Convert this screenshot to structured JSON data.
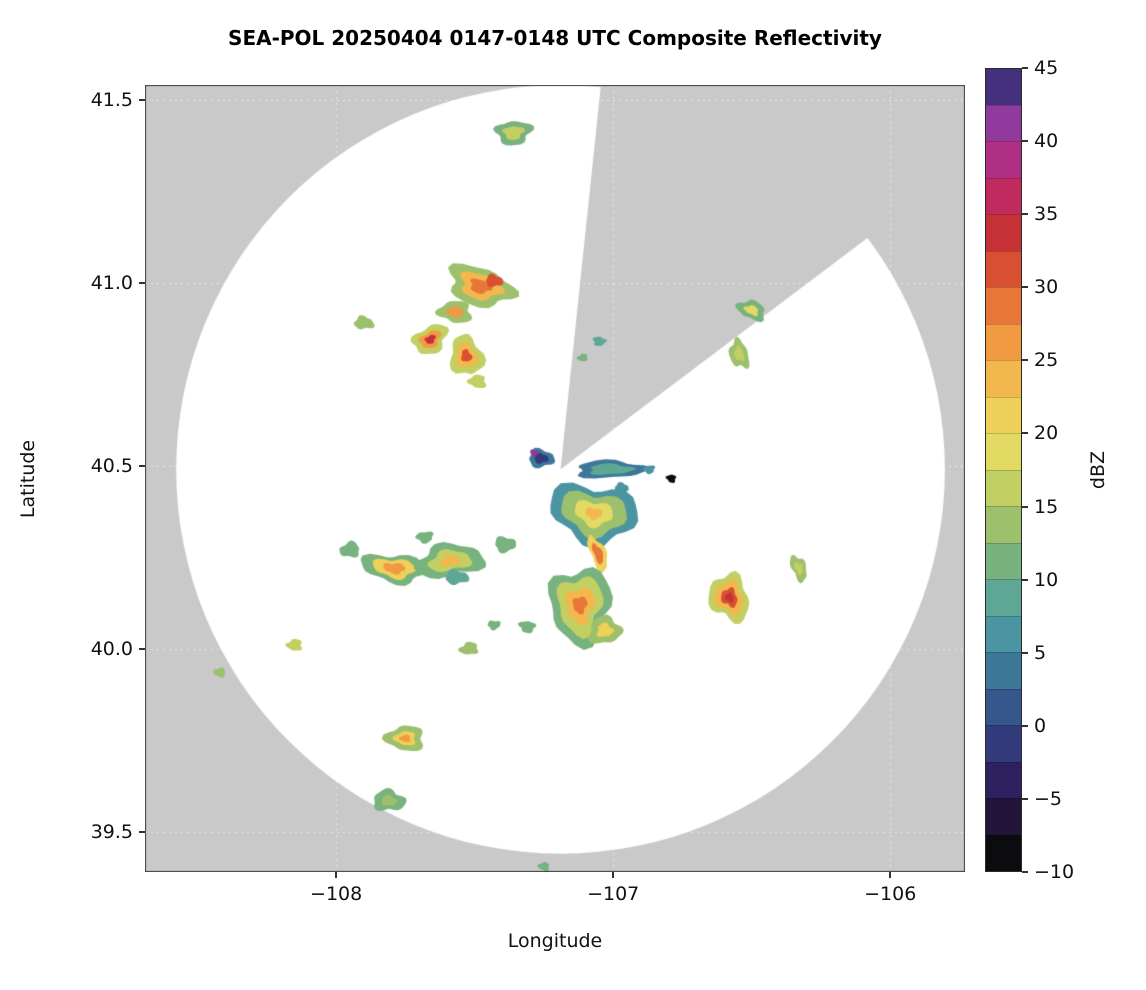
{
  "chart_data": {
    "type": "heatmap",
    "title": "SEA-POL 20250404 0147-0148 UTC Composite Reflectivity",
    "xlabel": "Longitude",
    "ylabel": "Latitude",
    "colorbar_label": "dBZ",
    "x_ticks": [
      -108,
      -107,
      -106
    ],
    "y_ticks": [
      39.5,
      40.0,
      40.5,
      41.0,
      41.5
    ],
    "xlim": [
      -108.69,
      -105.73
    ],
    "ylim": [
      39.39,
      41.54
    ],
    "grid": true,
    "background_color": "#c9c9c9",
    "coverage_color": "#ffffff",
    "colorbar": {
      "min": -10,
      "max": 45,
      "band_size": 2.5,
      "ticks": [
        -10,
        -5,
        0,
        5,
        10,
        15,
        20,
        25,
        30,
        35,
        40,
        45
      ],
      "band_colors": [
        "#0b0b10",
        "#23143a",
        "#2f2060",
        "#333b7c",
        "#35578b",
        "#3d7899",
        "#4b94a2",
        "#5fa795",
        "#78b27e",
        "#9cc06c",
        "#c2cf63",
        "#e3da64",
        "#eed05a",
        "#f2b84e",
        "#f09a42",
        "#e87638",
        "#d94f31",
        "#c63137",
        "#c02a5e",
        "#ae2f83",
        "#8f3a9c",
        "#44307d"
      ]
    },
    "radar": {
      "center": [
        -107.19,
        40.49
      ],
      "radius_deg_lat": 1.05,
      "blocked_sector_azimuth_deg": [
        6,
        53
      ]
    },
    "echo_format": "[lon, lat, rotation_deg, [[rx_deg_lat, ry_deg_lat, dBZ], ... outer_to_core]]",
    "echoes": [
      [
        -107.36,
        41.41,
        0,
        [
          [
            0.05,
            0.032,
            12
          ],
          [
            0.028,
            0.018,
            17
          ]
        ]
      ],
      [
        -107.48,
        40.99,
        15,
        [
          [
            0.095,
            0.05,
            14
          ],
          [
            0.06,
            0.033,
            23
          ],
          [
            0.03,
            0.018,
            29
          ]
        ]
      ],
      [
        -107.43,
        41.005,
        0,
        [
          [
            0.024,
            0.016,
            31
          ]
        ]
      ],
      [
        -107.57,
        40.92,
        0,
        [
          [
            0.045,
            0.03,
            14
          ],
          [
            0.022,
            0.015,
            25
          ]
        ]
      ],
      [
        -107.9,
        40.89,
        0,
        [
          [
            0.026,
            0.018,
            13
          ]
        ]
      ],
      [
        -107.66,
        40.845,
        -25,
        [
          [
            0.05,
            0.036,
            16
          ],
          [
            0.03,
            0.021,
            26
          ],
          [
            0.015,
            0.011,
            33
          ]
        ]
      ],
      [
        -107.53,
        40.8,
        75,
        [
          [
            0.058,
            0.042,
            15
          ],
          [
            0.036,
            0.026,
            24
          ],
          [
            0.018,
            0.013,
            30
          ]
        ]
      ],
      [
        -107.49,
        40.73,
        0,
        [
          [
            0.024,
            0.018,
            15
          ]
        ]
      ],
      [
        -107.05,
        40.84,
        0,
        [
          [
            0.018,
            0.012,
            8
          ]
        ]
      ],
      [
        -107.11,
        40.795,
        0,
        [
          [
            0.014,
            0.01,
            11
          ]
        ]
      ],
      [
        -106.5,
        40.925,
        20,
        [
          [
            0.038,
            0.026,
            11
          ],
          [
            0.019,
            0.013,
            18
          ]
        ]
      ],
      [
        -106.545,
        40.805,
        75,
        [
          [
            0.042,
            0.024,
            13
          ],
          [
            0.021,
            0.012,
            17
          ]
        ]
      ],
      [
        -107.26,
        40.52,
        0,
        [
          [
            0.036,
            0.024,
            3
          ],
          [
            0.02,
            0.013,
            -1
          ]
        ]
      ],
      [
        -107.285,
        40.535,
        0,
        [
          [
            0.011,
            0.009,
            41
          ]
        ]
      ],
      [
        -107.01,
        40.49,
        0,
        [
          [
            0.1,
            0.023,
            4
          ],
          [
            0.062,
            0.014,
            8
          ]
        ]
      ],
      [
        -106.87,
        40.49,
        0,
        [
          [
            0.016,
            0.011,
            7
          ]
        ]
      ],
      [
        -106.79,
        40.465,
        0,
        [
          [
            0.013,
            0.011,
            -9
          ]
        ]
      ],
      [
        -106.97,
        40.44,
        0,
        [
          [
            0.02,
            0.012,
            6
          ]
        ]
      ],
      [
        -107.07,
        40.37,
        10,
        [
          [
            0.115,
            0.082,
            7
          ],
          [
            0.086,
            0.06,
            13
          ],
          [
            0.05,
            0.035,
            18
          ],
          [
            0.022,
            0.016,
            24
          ]
        ]
      ],
      [
        -107.055,
        40.26,
        65,
        [
          [
            0.052,
            0.02,
            21
          ],
          [
            0.03,
            0.011,
            28
          ]
        ]
      ],
      [
        -107.12,
        40.12,
        85,
        [
          [
            0.1,
            0.086,
            10
          ],
          [
            0.076,
            0.062,
            16
          ],
          [
            0.046,
            0.04,
            23
          ],
          [
            0.022,
            0.02,
            29
          ]
        ]
      ],
      [
        -107.03,
        40.05,
        0,
        [
          [
            0.046,
            0.036,
            14
          ],
          [
            0.023,
            0.018,
            22
          ]
        ]
      ],
      [
        -107.79,
        40.22,
        8,
        [
          [
            0.085,
            0.04,
            12
          ],
          [
            0.055,
            0.027,
            20
          ],
          [
            0.028,
            0.015,
            26
          ]
        ]
      ],
      [
        -107.59,
        40.24,
        -5,
        [
          [
            0.09,
            0.046,
            10
          ],
          [
            0.056,
            0.029,
            17
          ],
          [
            0.026,
            0.015,
            23
          ]
        ]
      ],
      [
        -107.565,
        40.195,
        0,
        [
          [
            0.03,
            0.02,
            8
          ]
        ]
      ],
      [
        -107.95,
        40.27,
        0,
        [
          [
            0.028,
            0.02,
            12
          ]
        ]
      ],
      [
        -107.39,
        40.285,
        0,
        [
          [
            0.03,
            0.02,
            11
          ]
        ]
      ],
      [
        -107.68,
        40.305,
        0,
        [
          [
            0.024,
            0.015,
            10
          ]
        ]
      ],
      [
        -106.58,
        40.14,
        80,
        [
          [
            0.066,
            0.052,
            16
          ],
          [
            0.046,
            0.036,
            24
          ],
          [
            0.026,
            0.021,
            30
          ],
          [
            0.013,
            0.011,
            33
          ]
        ]
      ],
      [
        -106.33,
        40.22,
        70,
        [
          [
            0.036,
            0.02,
            13
          ],
          [
            0.017,
            0.011,
            17
          ]
        ]
      ],
      [
        -107.31,
        40.06,
        0,
        [
          [
            0.022,
            0.016,
            12
          ]
        ]
      ],
      [
        -107.52,
        40.0,
        0,
        [
          [
            0.025,
            0.017,
            14
          ]
        ]
      ],
      [
        -107.43,
        40.065,
        0,
        [
          [
            0.018,
            0.012,
            10
          ]
        ]
      ],
      [
        -108.15,
        40.01,
        0,
        [
          [
            0.022,
            0.015,
            15
          ]
        ]
      ],
      [
        -108.42,
        39.935,
        0,
        [
          [
            0.017,
            0.012,
            13
          ]
        ]
      ],
      [
        -107.75,
        39.755,
        0,
        [
          [
            0.05,
            0.036,
            14
          ],
          [
            0.028,
            0.02,
            22
          ],
          [
            0.014,
            0.01,
            26
          ]
        ]
      ],
      [
        -107.81,
        39.585,
        0,
        [
          [
            0.042,
            0.03,
            11
          ],
          [
            0.02,
            0.015,
            14
          ]
        ]
      ],
      [
        -107.25,
        39.405,
        0,
        [
          [
            0.016,
            0.011,
            12
          ]
        ]
      ]
    ]
  }
}
